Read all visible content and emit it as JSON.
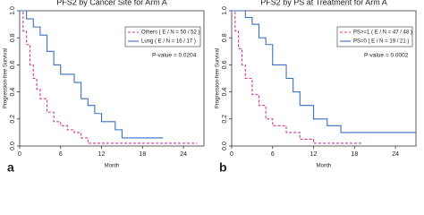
{
  "chart_data": [
    {
      "type": "step",
      "title": "PFS2 by Cancer Site for Arm A",
      "x_label": "Month",
      "y_label": "Progression-free Survival",
      "annotation": "P-value = 0.0204",
      "panel_label": "a",
      "xlim": [
        0,
        27
      ],
      "ylim": [
        0,
        1
      ],
      "xticks": [
        0,
        6,
        12,
        18,
        24
      ],
      "yticks": [
        {
          "value": 0,
          "label": "0.0"
        },
        {
          "value": 0.2,
          "label": "0.2"
        },
        {
          "value": 0.4,
          "label": "0.4"
        },
        {
          "value": 0.6,
          "label": "0.6"
        },
        {
          "value": 0.8,
          "label": "0.8"
        },
        {
          "value": 1,
          "label": "1.0"
        }
      ],
      "series": [
        {
          "name": "Others ( E / N = 50 / 52 )",
          "color": "#d6338a",
          "line_style": "dashed",
          "x": [
            0,
            0.5,
            1,
            1.5,
            2,
            2.5,
            3,
            4,
            5,
            6,
            7,
            8,
            9,
            10,
            26
          ],
          "values": [
            1,
            0.85,
            0.75,
            0.6,
            0.5,
            0.42,
            0.35,
            0.25,
            0.18,
            0.15,
            0.12,
            0.1,
            0.06,
            0.02,
            0.02
          ]
        },
        {
          "name": "Lung ( E / N = 16 / 17 )",
          "color": "#3a6fc4",
          "line_style": "solid",
          "x": [
            0,
            1,
            2,
            3,
            4,
            5,
            6,
            8,
            9,
            10,
            11,
            12,
            14,
            15,
            21
          ],
          "values": [
            1,
            0.94,
            0.88,
            0.82,
            0.7,
            0.6,
            0.53,
            0.47,
            0.35,
            0.3,
            0.24,
            0.18,
            0.12,
            0.06,
            0.06
          ]
        }
      ]
    },
    {
      "type": "step",
      "title": "PFS2 by PS at Treatment for Arm A",
      "x_label": "Month",
      "y_label": "Progression-free Survival",
      "annotation": "P-value = 0.0002",
      "panel_label": "b",
      "xlim": [
        0,
        27
      ],
      "ylim": [
        0,
        1
      ],
      "xticks": [
        0,
        6,
        12,
        18,
        24
      ],
      "yticks": [
        {
          "value": 0,
          "label": "0.0"
        },
        {
          "value": 0.2,
          "label": "0.2"
        },
        {
          "value": 0.4,
          "label": "0.4"
        },
        {
          "value": 0.6,
          "label": "0.6"
        },
        {
          "value": 0.8,
          "label": "0.8"
        },
        {
          "value": 1,
          "label": "1.0"
        }
      ],
      "series": [
        {
          "name": "PS>=1 ( E / N = 47 / 48 )",
          "color": "#d6338a",
          "line_style": "dashed",
          "x": [
            0,
            0.5,
            1,
            1.5,
            2,
            3,
            4,
            5,
            6,
            8,
            10,
            12,
            19
          ],
          "values": [
            1,
            0.85,
            0.72,
            0.6,
            0.5,
            0.38,
            0.3,
            0.2,
            0.15,
            0.1,
            0.05,
            0.02,
            0.02
          ]
        },
        {
          "name": "PS=0 ( E / N = 19 / 21 )",
          "color": "#3a6fc4",
          "line_style": "solid",
          "x": [
            0,
            2,
            3,
            4,
            5,
            6,
            8,
            9,
            10,
            12,
            14,
            16,
            27
          ],
          "values": [
            1,
            0.95,
            0.9,
            0.8,
            0.75,
            0.6,
            0.5,
            0.4,
            0.3,
            0.2,
            0.15,
            0.1,
            0.1
          ]
        }
      ]
    }
  ]
}
